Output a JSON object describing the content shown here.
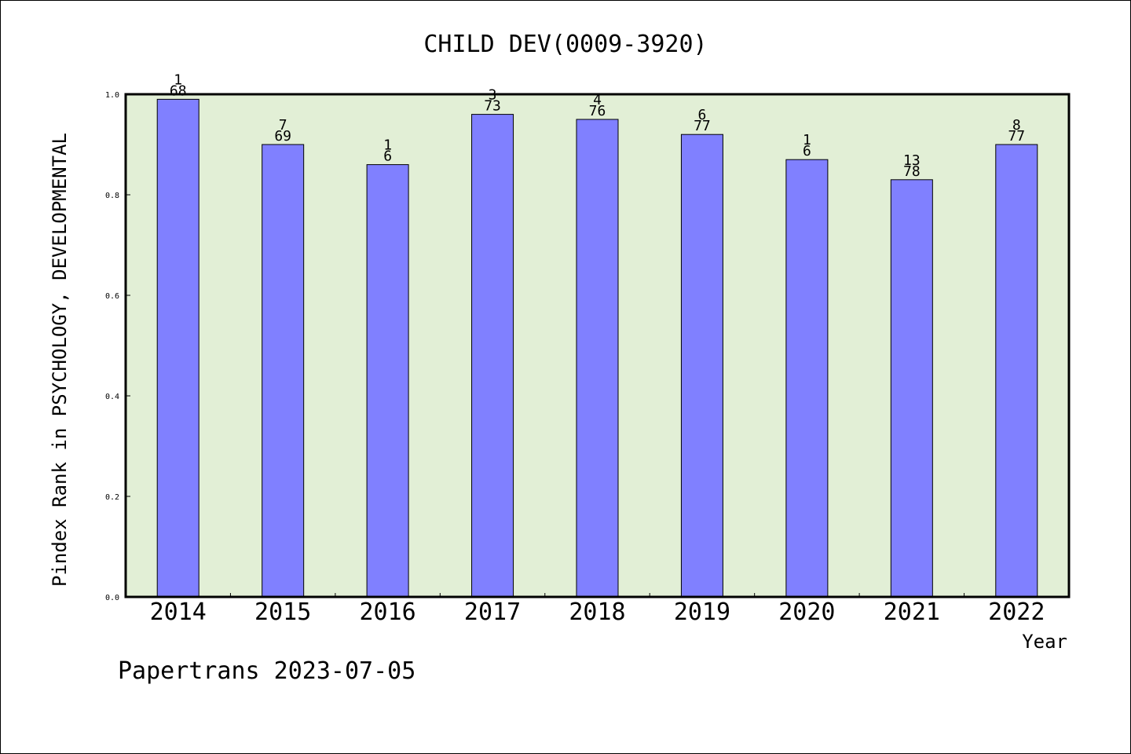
{
  "chart_data": {
    "type": "bar",
    "title": "CHILD DEV(0009-3920)",
    "xlabel": "Year",
    "ylabel": "Pindex Rank in PSYCHOLOGY, DEVELOPMENTAL",
    "categories": [
      "2014",
      "2015",
      "2016",
      "2017",
      "2018",
      "2019",
      "2020",
      "2021",
      "2022"
    ],
    "values": [
      0.99,
      0.9,
      0.86,
      0.96,
      0.95,
      0.92,
      0.87,
      0.83,
      0.9
    ],
    "rank": [
      "1",
      "7",
      "1",
      "3",
      "4",
      "6",
      "1",
      "13",
      "8"
    ],
    "total": [
      "68",
      "69",
      "6",
      "73",
      "76",
      "77",
      "6",
      "78",
      "77"
    ],
    "ylim": [
      0,
      1.0
    ],
    "yticks": [
      "0.0",
      "0.2",
      "0.4",
      "0.6",
      "0.8",
      "1.0"
    ],
    "grid": false,
    "colors": {
      "bar": "#8080ff",
      "plot_background": "#e2efd6",
      "axes": "#000000"
    }
  },
  "footer": "Papertrans 2023-07-05"
}
